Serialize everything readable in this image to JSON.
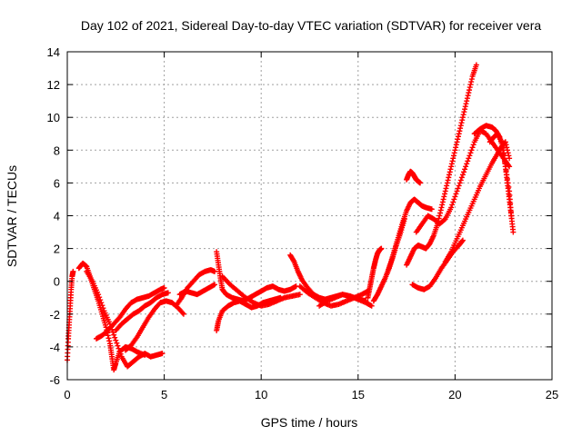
{
  "chart_data": {
    "type": "scatter",
    "title": "Day 102 of 2021, Sidereal Day-to-day VTEC variation (SDTVAR) for receiver vera",
    "xlabel": "GPS time / hours",
    "ylabel": "SDTVAR / TECUs",
    "xlim": [
      0,
      25
    ],
    "ylim": [
      -6,
      14
    ],
    "x_ticks": [
      0,
      5,
      10,
      15,
      20,
      25
    ],
    "y_ticks": [
      -6,
      -4,
      -2,
      0,
      2,
      4,
      6,
      8,
      10,
      12,
      14
    ],
    "x_tick_labels": [
      "0",
      "5",
      "10",
      "15",
      "20",
      "25"
    ],
    "y_tick_labels": [
      "-6",
      "-4",
      "-2",
      "0",
      "2",
      "4",
      "6",
      "8",
      "10",
      "12",
      "14"
    ],
    "grid": true,
    "marker": "+",
    "color": "#ff0000",
    "series": [
      {
        "x": [
          0.0,
          0.05,
          0.1,
          0.15,
          0.2,
          0.25,
          0.3
        ],
        "y": [
          -4.8,
          -3.5,
          -2.5,
          -1.5,
          -0.5,
          0.3,
          0.6
        ]
      },
      {
        "x": [
          0.6,
          0.8,
          1.0,
          1.2,
          1.4,
          1.6,
          1.8,
          2.0,
          2.2,
          2.3,
          2.4,
          2.5,
          2.7,
          3.0,
          3.3,
          3.6,
          4.0
        ],
        "y": [
          0.8,
          1.1,
          0.9,
          0.2,
          -0.5,
          -1.2,
          -2.0,
          -2.8,
          -3.8,
          -4.6,
          -5.4,
          -5.0,
          -4.3,
          -4.0,
          -4.1,
          -4.3,
          -4.5
        ]
      },
      {
        "x": [
          1.0,
          1.3,
          1.6,
          1.9,
          2.2,
          2.5,
          2.8,
          3.1,
          3.4,
          3.7,
          4.0,
          4.3,
          4.6,
          4.9
        ],
        "y": [
          0.6,
          0.0,
          -0.8,
          -1.8,
          -2.6,
          -3.6,
          -4.6,
          -5.2,
          -4.9,
          -4.6,
          -4.4,
          -4.6,
          -4.5,
          -4.4
        ]
      },
      {
        "x": [
          1.5,
          1.8,
          2.1,
          2.4,
          2.7,
          3.0,
          3.3,
          3.6,
          3.9,
          4.2,
          4.5,
          4.8,
          5.0
        ],
        "y": [
          -3.5,
          -3.3,
          -3.0,
          -2.6,
          -2.2,
          -1.7,
          -1.3,
          -1.1,
          -1.0,
          -0.9,
          -0.7,
          -0.5,
          -0.4
        ]
      },
      {
        "x": [
          2.5,
          2.8,
          3.1,
          3.4,
          3.7,
          4.0,
          4.3,
          4.6,
          4.9,
          5.2
        ],
        "y": [
          -3.0,
          -2.6,
          -2.3,
          -2.0,
          -1.8,
          -1.5,
          -1.3,
          -1.0,
          -0.8,
          -0.7
        ]
      },
      {
        "x": [
          3.0,
          3.3,
          3.6,
          3.9,
          4.2,
          4.5,
          4.8,
          5.1,
          5.4,
          5.7,
          6.0
        ],
        "y": [
          -4.2,
          -3.9,
          -3.4,
          -2.8,
          -2.2,
          -1.7,
          -1.3,
          -1.2,
          -1.3,
          -1.6,
          -2.0
        ]
      },
      {
        "x": [
          5.6,
          5.9,
          6.2,
          6.5,
          6.8,
          7.1,
          7.4,
          7.6
        ],
        "y": [
          -1.5,
          -1.0,
          -0.4,
          0.0,
          0.4,
          0.6,
          0.7,
          0.6
        ]
      },
      {
        "x": [
          5.8,
          6.1,
          6.4,
          6.7,
          7.0,
          7.3,
          7.6
        ],
        "y": [
          -0.8,
          -0.6,
          -0.7,
          -0.8,
          -0.6,
          -0.4,
          -0.2
        ]
      },
      {
        "x": [
          7.7,
          7.8,
          7.9,
          8.0,
          8.2,
          8.5,
          8.8,
          9.1,
          9.4,
          9.7,
          10.0,
          10.3,
          10.6,
          10.9,
          11.2,
          11.5,
          11.8
        ],
        "y": [
          1.8,
          1.0,
          0.2,
          -0.5,
          -0.8,
          -1.0,
          -1.1,
          -1.2,
          -1.0,
          -0.8,
          -0.6,
          -0.4,
          -0.3,
          -0.5,
          -0.6,
          -0.5,
          -0.3
        ]
      },
      {
        "x": [
          7.7,
          7.8,
          8.0,
          8.3,
          8.6,
          8.9,
          9.2,
          9.5,
          9.8,
          10.1,
          10.4,
          10.7,
          11.0
        ],
        "y": [
          -3.0,
          -2.4,
          -1.8,
          -1.5,
          -1.3,
          -1.2,
          -1.4,
          -1.6,
          -1.5,
          -1.3,
          -1.2,
          -1.1,
          -1.0
        ]
      },
      {
        "x": [
          8.0,
          8.4,
          8.8,
          9.2,
          9.6,
          10.0,
          10.4,
          10.8,
          11.2,
          11.6,
          12.0
        ],
        "y": [
          0.3,
          -0.2,
          -0.6,
          -1.0,
          -1.3,
          -1.5,
          -1.4,
          -1.2,
          -1.0,
          -0.9,
          -0.8
        ]
      },
      {
        "x": [
          11.5,
          11.7,
          11.9,
          12.1,
          12.4,
          12.7,
          13.0,
          13.3,
          13.6,
          13.9,
          14.2,
          14.5,
          14.8,
          15.1,
          15.4
        ],
        "y": [
          1.6,
          1.2,
          0.6,
          0.1,
          -0.4,
          -0.8,
          -1.0,
          -1.1,
          -1.0,
          -0.9,
          -0.8,
          -0.9,
          -1.0,
          -1.1,
          -1.2
        ]
      },
      {
        "x": [
          12.0,
          12.4,
          12.8,
          13.2,
          13.6,
          14.0,
          14.4,
          14.8,
          15.2,
          15.5
        ],
        "y": [
          -0.3,
          -0.7,
          -1.0,
          -1.3,
          -1.5,
          -1.4,
          -1.2,
          -1.0,
          -0.8,
          -0.6
        ]
      },
      {
        "x": [
          13.0,
          13.4,
          13.8,
          14.2,
          14.6,
          15.0,
          15.4,
          15.7
        ],
        "y": [
          -1.5,
          -1.2,
          -1.0,
          -0.8,
          -0.9,
          -1.1,
          -1.3,
          -1.5
        ]
      },
      {
        "x": [
          15.5,
          15.6,
          15.7,
          15.8,
          15.9,
          16.0,
          16.1,
          16.2
        ],
        "y": [
          -1.0,
          -0.4,
          0.2,
          0.8,
          1.3,
          1.7,
          1.9,
          2.0
        ]
      },
      {
        "x": [
          15.8,
          16.0,
          16.2,
          16.4,
          16.6,
          16.8,
          17.0,
          17.2,
          17.4
        ],
        "y": [
          -1.2,
          -0.8,
          -0.3,
          0.2,
          0.8,
          1.5,
          2.3,
          3.0,
          3.8
        ]
      },
      {
        "x": [
          16.5,
          16.7,
          16.9,
          17.1,
          17.3,
          17.5,
          17.7,
          17.9,
          18.1,
          18.3,
          18.5,
          18.8
        ],
        "y": [
          0.5,
          1.2,
          2.0,
          2.8,
          3.6,
          4.3,
          4.8,
          5.0,
          4.8,
          4.6,
          4.5,
          4.4
        ]
      },
      {
        "x": [
          17.5,
          17.6,
          17.7,
          17.8,
          17.9,
          18.0,
          18.1,
          18.2
        ],
        "y": [
          6.2,
          6.5,
          6.7,
          6.6,
          6.4,
          6.2,
          6.1,
          6.0
        ]
      },
      {
        "x": [
          17.5,
          17.7,
          17.9,
          18.1,
          18.3,
          18.5,
          18.7,
          18.9,
          19.1,
          19.3,
          19.5,
          19.7,
          19.9,
          20.1,
          20.3,
          20.5,
          20.7,
          20.9,
          21.1
        ],
        "y": [
          1.0,
          1.5,
          2.0,
          2.2,
          2.1,
          2.0,
          2.3,
          2.8,
          3.5,
          4.5,
          5.5,
          6.5,
          7.5,
          8.5,
          9.5,
          10.5,
          11.5,
          12.5,
          13.2
        ]
      },
      {
        "x": [
          17.8,
          18.1,
          18.4,
          18.7,
          19.0,
          19.3,
          19.6,
          19.9,
          20.2,
          20.4
        ],
        "y": [
          -0.2,
          -0.4,
          -0.5,
          -0.3,
          0.2,
          0.8,
          1.3,
          1.8,
          2.2,
          2.5
        ]
      },
      {
        "x": [
          18.0,
          18.3,
          18.6,
          18.9,
          19.2,
          19.5,
          19.8,
          20.1,
          20.4,
          20.7,
          21.0,
          21.3,
          21.6,
          21.9,
          22.2,
          22.5,
          22.8
        ],
        "y": [
          3.0,
          3.5,
          4.0,
          3.8,
          3.5,
          3.8,
          4.5,
          5.5,
          6.5,
          7.5,
          8.5,
          9.2,
          9.0,
          8.5,
          8.0,
          7.5,
          7.0
        ]
      },
      {
        "x": [
          19.5,
          19.8,
          20.1,
          20.4,
          20.7,
          21.0,
          21.3,
          21.6,
          21.9,
          22.2,
          22.4,
          22.6,
          22.8
        ],
        "y": [
          1.2,
          1.8,
          2.6,
          3.4,
          4.2,
          5.0,
          5.8,
          6.5,
          7.2,
          7.8,
          8.2,
          8.5,
          7.5
        ]
      },
      {
        "x": [
          21.0,
          21.3,
          21.6,
          21.9,
          22.1,
          22.3,
          22.5,
          22.6,
          22.7,
          22.8,
          22.9
        ],
        "y": [
          9.0,
          9.3,
          9.5,
          9.4,
          9.2,
          8.8,
          8.0,
          7.0,
          6.0,
          5.0,
          4.0
        ]
      },
      {
        "x": [
          21.8,
          22.0,
          22.2,
          22.4,
          22.6,
          22.8,
          22.9,
          23.0
        ],
        "y": [
          8.5,
          8.8,
          9.0,
          8.5,
          7.0,
          5.5,
          4.0,
          3.0
        ]
      }
    ]
  }
}
